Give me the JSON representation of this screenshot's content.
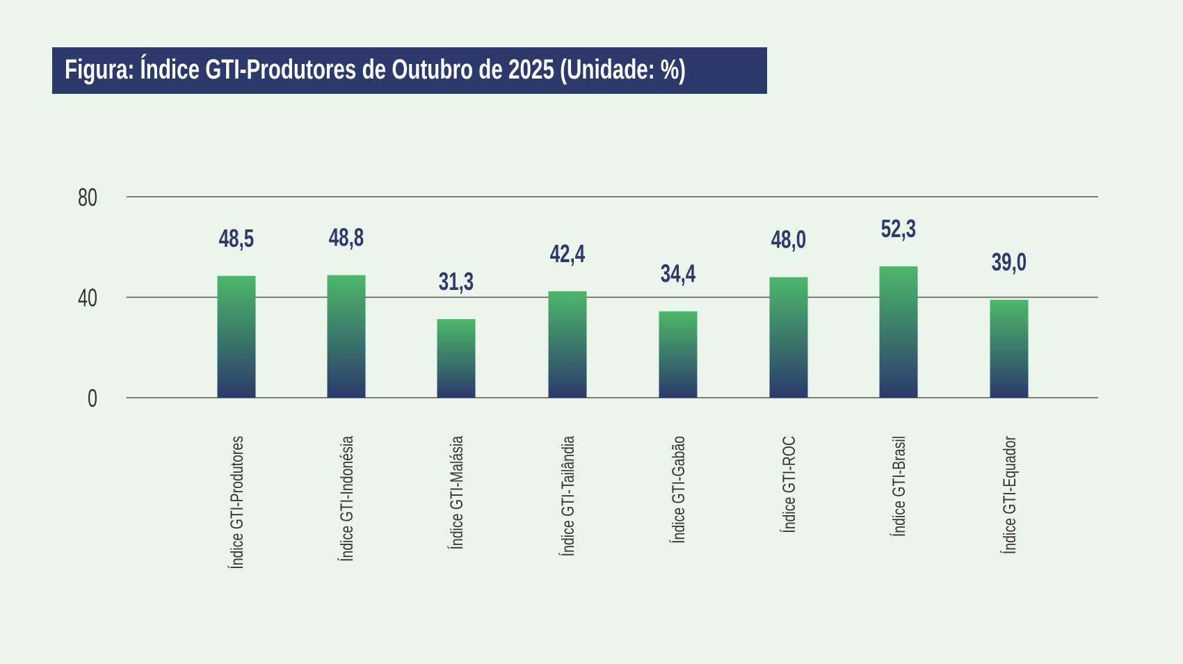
{
  "chart_data": {
    "type": "bar",
    "title": "Figura: Índice GTI-Produtores de Outubro de 2025 (Unidade: %)",
    "categories": [
      "Índice GTI-Produtores",
      "Índice GTI-Indonésia",
      "Índice GTI-Malásia",
      "Índice GTI-Tailândia",
      "Índice GTI-Gabão",
      "Índice GTI-ROC",
      "Índice GTI-Brasil",
      "Índice GTI-Equador"
    ],
    "values": [
      48.5,
      48.8,
      31.3,
      42.4,
      34.4,
      48.0,
      52.3,
      39.0
    ],
    "value_labels": [
      "48,5",
      "48,8",
      "31,3",
      "42,4",
      "34,4",
      "48,0",
      "52,3",
      "39,0"
    ],
    "yticks": [
      0,
      40,
      80
    ],
    "ylim": [
      0,
      80
    ],
    "grid": true,
    "colors": {
      "bar_top": "#4cb86a",
      "bar_bottom": "#2b3a6b",
      "title_bg": "#2b3a6b",
      "value_text": "#2b3a6b",
      "background": "#ecf5ec"
    }
  }
}
